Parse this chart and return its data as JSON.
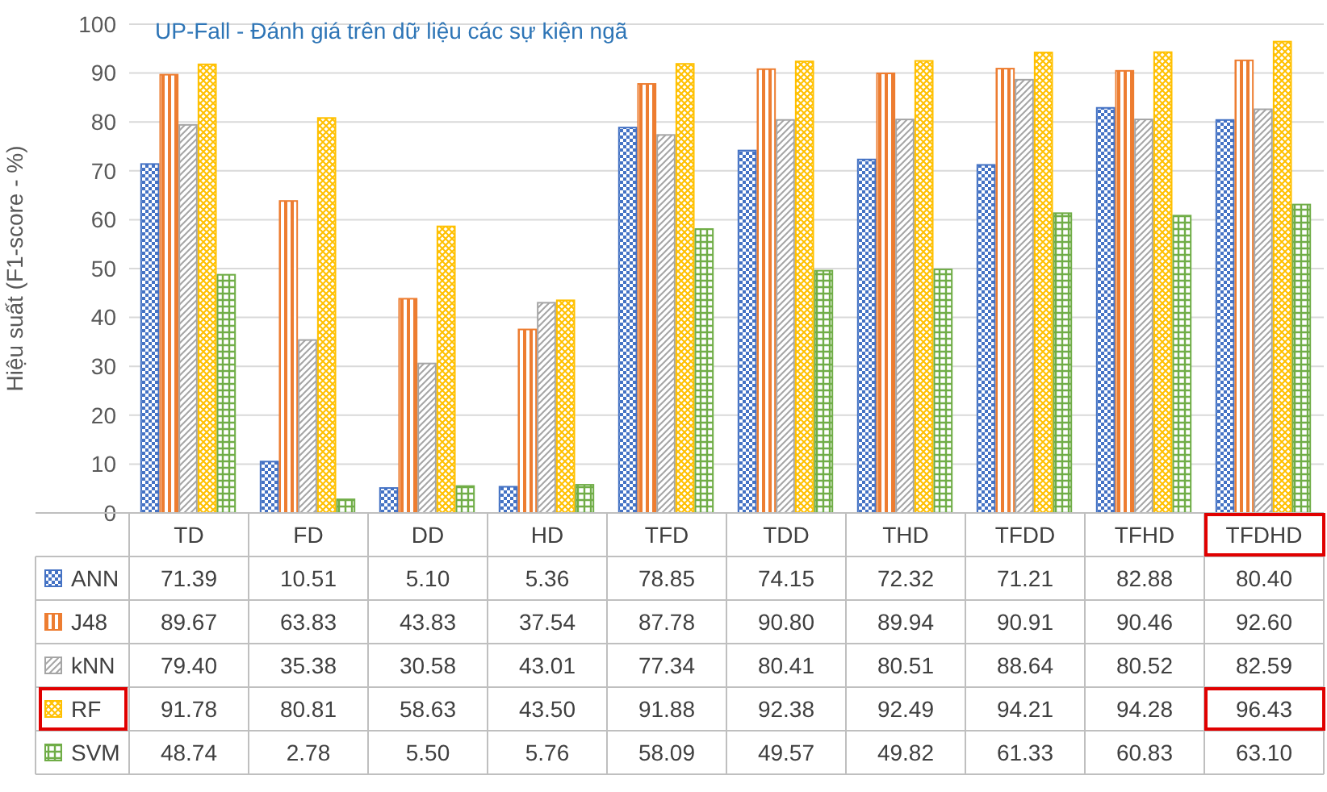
{
  "chart_data": {
    "type": "bar",
    "title": "UP-Fall - Đánh giá trên dữ liệu các sự kiện ngã",
    "ylabel": "Hiệu suất (F1-score - %)",
    "categories": [
      "TD",
      "FD",
      "DD",
      "HD",
      "TFD",
      "TDD",
      "THD",
      "TFDD",
      "TFHD",
      "TFDHD"
    ],
    "series": [
      {
        "name": "ANN",
        "color": "#4472c4",
        "values": [
          71.39,
          10.51,
          5.1,
          5.36,
          78.85,
          74.15,
          72.32,
          71.21,
          82.88,
          80.4
        ],
        "value_labels": [
          "71.39",
          "10.51",
          "5.10",
          "5.36",
          "78.85",
          "74.15",
          "72.32",
          "71.21",
          "82.88",
          "80.40"
        ]
      },
      {
        "name": "J48",
        "color": "#ed7d31",
        "values": [
          89.67,
          63.83,
          43.83,
          37.54,
          87.78,
          90.8,
          89.94,
          90.91,
          90.46,
          92.6
        ],
        "value_labels": [
          "89.67",
          "63.83",
          "43.83",
          "37.54",
          "87.78",
          "90.80",
          "89.94",
          "90.91",
          "90.46",
          "92.60"
        ]
      },
      {
        "name": "kNN",
        "color": "#a5a5a5",
        "values": [
          79.4,
          35.38,
          30.58,
          43.01,
          77.34,
          80.41,
          80.51,
          88.64,
          80.52,
          82.59
        ],
        "value_labels": [
          "79.40",
          "35.38",
          "30.58",
          "43.01",
          "77.34",
          "80.41",
          "80.51",
          "88.64",
          "80.52",
          "82.59"
        ]
      },
      {
        "name": "RF",
        "color": "#ffc000",
        "values": [
          91.78,
          80.81,
          58.63,
          43.5,
          91.88,
          92.38,
          92.49,
          94.21,
          94.28,
          96.43
        ],
        "value_labels": [
          "91.78",
          "80.81",
          "58.63",
          "43.50",
          "91.88",
          "92.38",
          "92.49",
          "94.21",
          "94.28",
          "96.43"
        ]
      },
      {
        "name": "SVM",
        "color": "#70ad47",
        "values": [
          48.74,
          2.78,
          5.5,
          5.76,
          58.09,
          49.57,
          49.82,
          61.33,
          60.83,
          63.1
        ],
        "value_labels": [
          "48.74",
          "2.78",
          "5.50",
          "5.76",
          "58.09",
          "49.57",
          "49.82",
          "61.33",
          "60.83",
          "63.10"
        ]
      }
    ],
    "ylim": [
      0,
      100
    ],
    "yticks": [
      0,
      10,
      20,
      30,
      40,
      50,
      60,
      70,
      80,
      90,
      100
    ],
    "grid": "y",
    "legend": "bottom"
  }
}
